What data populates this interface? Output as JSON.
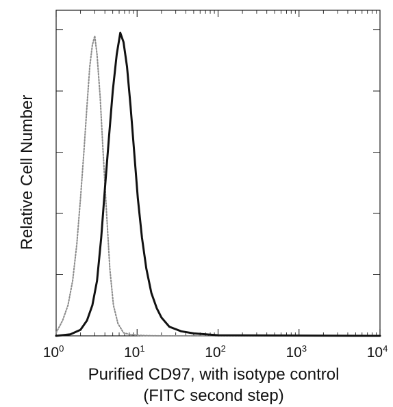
{
  "chart_data": {
    "type": "line",
    "title": "",
    "xlabel": "Purified CD97, with isotype control",
    "xlabel_line2": "(FITC second step)",
    "ylabel": "Relative Cell Number",
    "x_scale": "log",
    "xlim": [
      1,
      10000
    ],
    "ylim": [
      0,
      100
    ],
    "x_ticks": [
      {
        "base": "10",
        "exp": "0"
      },
      {
        "base": "10",
        "exp": "1"
      },
      {
        "base": "10",
        "exp": "2"
      },
      {
        "base": "10",
        "exp": "3"
      },
      {
        "base": "10",
        "exp": "4"
      }
    ],
    "grid": false,
    "legend": "none",
    "series": [
      {
        "style": "dotted-gray",
        "color": "#8d8d8d",
        "x": [
          1.0,
          1.2,
          1.4,
          1.6,
          1.8,
          2.0,
          2.2,
          2.4,
          2.6,
          2.8,
          3.0,
          3.2,
          3.5,
          3.8,
          4.2,
          4.6,
          5.1,
          5.8,
          6.8,
          8.0,
          10.0,
          13.0,
          20.0,
          50.0,
          10000.0
        ],
        "y": [
          1,
          5,
          10,
          18,
          30,
          45,
          60,
          75,
          88,
          95,
          98,
          92,
          78,
          60,
          40,
          22,
          10,
          4,
          1,
          0.5,
          0.2,
          0.1,
          0,
          0,
          0
        ]
      },
      {
        "style": "solid-black",
        "color": "#111111",
        "x": [
          1.0,
          1.5,
          2.0,
          2.4,
          2.8,
          3.2,
          3.6,
          4.0,
          4.5,
          5.0,
          5.6,
          6.2,
          6.8,
          7.5,
          8.3,
          9.2,
          10.2,
          11.5,
          13.0,
          15.0,
          17.5,
          20.0,
          25.0,
          35.0,
          50.0,
          100.0,
          10000.0
        ],
        "y": [
          0,
          0.5,
          2,
          5,
          10,
          18,
          32,
          48,
          65,
          80,
          92,
          99,
          96,
          88,
          75,
          60,
          45,
          32,
          22,
          14,
          9,
          6,
          3,
          1.5,
          0.8,
          0.2,
          0
        ]
      }
    ]
  }
}
